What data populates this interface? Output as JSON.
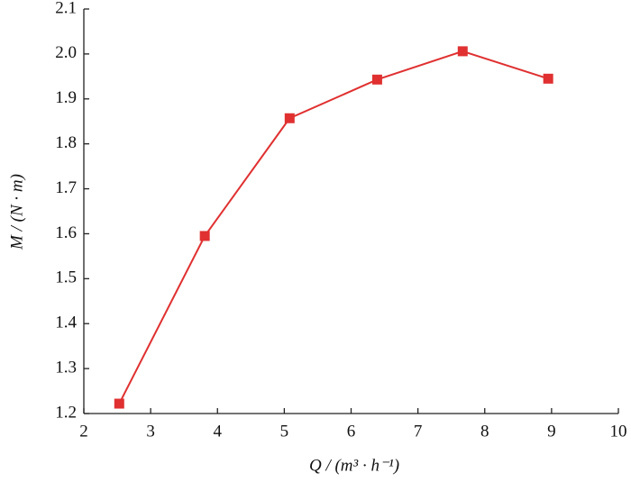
{
  "chart_data": {
    "type": "line",
    "x_label": "Q / (m³ · h⁻¹)",
    "y_label": "M / (N · m)",
    "x": [
      2.53,
      3.81,
      5.08,
      6.39,
      7.67,
      8.95
    ],
    "series": [
      {
        "color": "#e03030",
        "values": [
          1.222,
          1.595,
          1.857,
          1.943,
          2.006,
          1.945
        ]
      }
    ],
    "xlim": [
      2,
      10
    ],
    "xticks": [
      2,
      3,
      4,
      5,
      6,
      7,
      8,
      9,
      10
    ],
    "ylim": [
      1.2,
      2.1
    ],
    "yticks": [
      {
        "value": 1.2,
        "label": "1.2"
      },
      {
        "value": 1.3,
        "label": "1.3"
      },
      {
        "value": 1.4,
        "label": "1.4"
      },
      {
        "value": 1.5,
        "label": "1.5"
      },
      {
        "value": 1.6,
        "label": "1.6"
      },
      {
        "value": 1.7,
        "label": "1.7"
      },
      {
        "value": 1.8,
        "label": "1.8"
      },
      {
        "value": 1.9,
        "label": "1.9"
      },
      {
        "value": 2.0,
        "label": "2.0"
      },
      {
        "value": 2.1,
        "label": "2.1"
      }
    ],
    "grid": false
  }
}
